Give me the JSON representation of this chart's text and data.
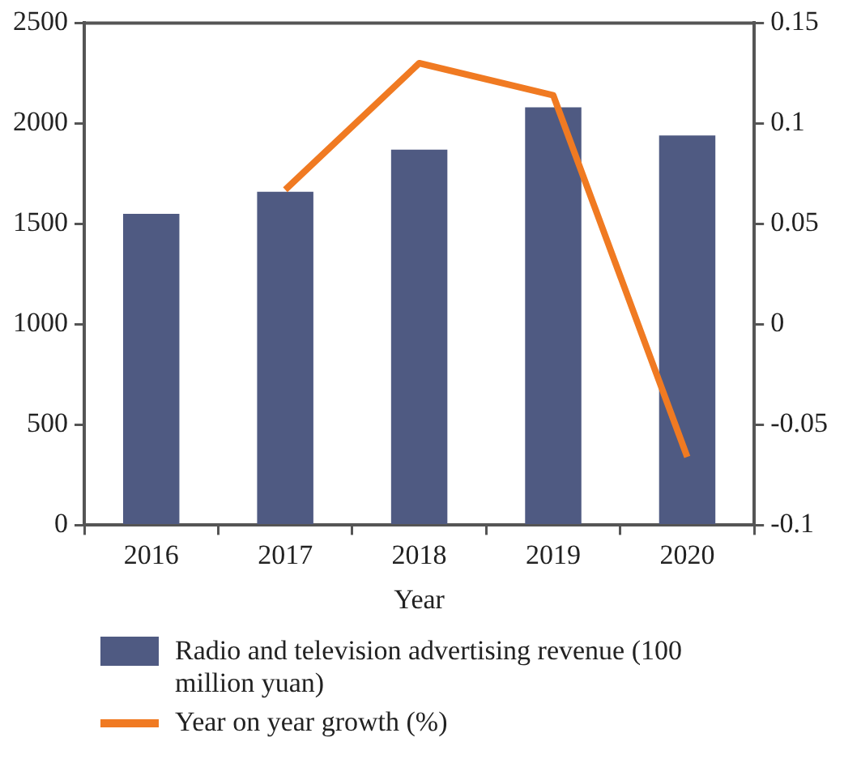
{
  "chart_data": {
    "type": "bar",
    "xlabel": "Year",
    "categories": [
      "2016",
      "2017",
      "2018",
      "2019",
      "2020"
    ],
    "series": [
      {
        "name": "Radio and television advertising revenue (100 million yuan)",
        "color": "#4f5a82",
        "values": [
          1550,
          1660,
          1870,
          2080,
          1940
        ]
      },
      {
        "name": "Year on year growth (%)",
        "type": "line",
        "axis": "y2",
        "color": "#f07a22",
        "values": [
          null,
          0.067,
          0.13,
          0.114,
          -0.066
        ]
      }
    ],
    "ylim": [
      0,
      2500
    ],
    "yticks": [
      0,
      500,
      1000,
      1500,
      2000,
      2500
    ],
    "y2lim": [
      -0.1,
      0.15
    ],
    "y2ticks": [
      -0.1,
      -0.05,
      0,
      0.05,
      0.1,
      0.15
    ],
    "grid": false,
    "legend": "bottom",
    "marker": "none",
    "line_style": "solid"
  }
}
